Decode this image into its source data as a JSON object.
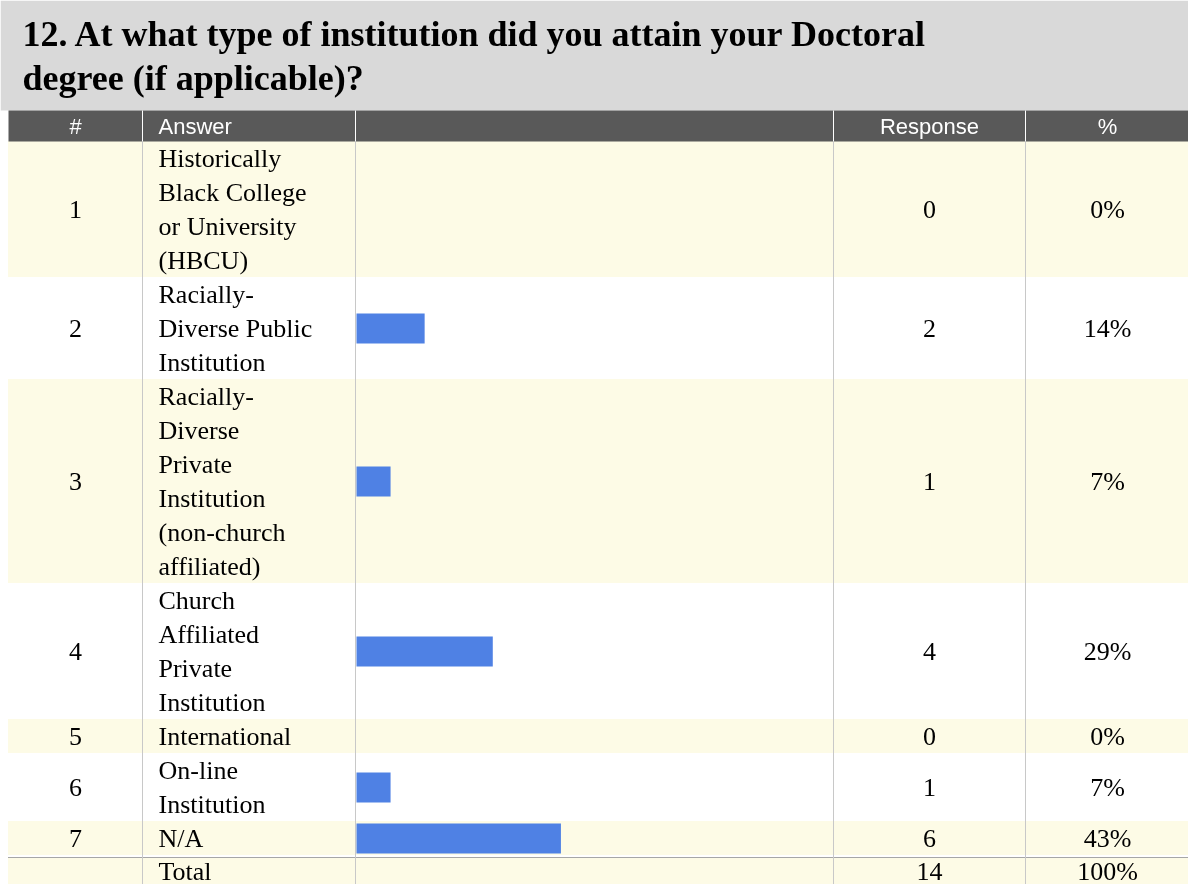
{
  "chart_data": {
    "type": "bar",
    "orientation": "horizontal",
    "title": "12.  At what type of institution did you attain your Doctoral degree (if applicable)?",
    "categories": [
      "Historically Black College or University (HBCU)",
      "Racially-Diverse Public Institution",
      "Racially-Diverse Private Institution (non-church affiliated)",
      "Church Affiliated Private Institution",
      "International",
      "On-line Institution",
      "N/A"
    ],
    "values": [
      0,
      2,
      1,
      4,
      0,
      1,
      6
    ],
    "color": "#4f81e4",
    "xlim": [
      0,
      14
    ],
    "data_labels": true,
    "annotations": [
      "#",
      "Answer",
      "Response",
      "%",
      "1",
      "2",
      "3",
      "4",
      "5",
      "6",
      "7",
      "0%",
      "14%",
      "7%",
      "29%",
      "0%",
      "7%",
      "43%",
      "Total",
      "14",
      "100%"
    ]
  }
}
